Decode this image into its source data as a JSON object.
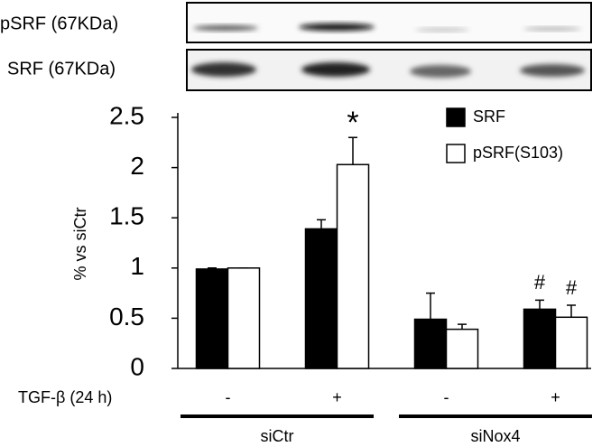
{
  "blots": [
    {
      "label": "pSRF (67KDa)"
    },
    {
      "label": "SRF (67KDa)"
    }
  ],
  "chart_data": {
    "type": "bar",
    "y_label": "% vs siCtr",
    "x_label": "TGF-β (24 h)",
    "categories": [
      "-",
      "+",
      "-",
      "+"
    ],
    "groups": [
      {
        "label": "siCtr"
      },
      {
        "label": "siNox4"
      }
    ],
    "series": [
      {
        "name": "SRF",
        "color": "#000000",
        "values": [
          0.99,
          1.39,
          0.49,
          0.59
        ],
        "errors": [
          0.01,
          0.09,
          0.26,
          0.09
        ],
        "markers": [
          null,
          null,
          null,
          "#"
        ]
      },
      {
        "name": "pSRF(S103)",
        "color": "#ffffff",
        "values": [
          1.0,
          2.03,
          0.39,
          0.51
        ],
        "errors": [
          0.0,
          0.27,
          0.05,
          0.12
        ],
        "markers": [
          null,
          "*",
          null,
          "#"
        ]
      }
    ],
    "ylim": [
      0,
      2.5
    ],
    "yticks": [
      0,
      0.5,
      1,
      1.5,
      2,
      2.5
    ],
    "legend": "top-right"
  }
}
